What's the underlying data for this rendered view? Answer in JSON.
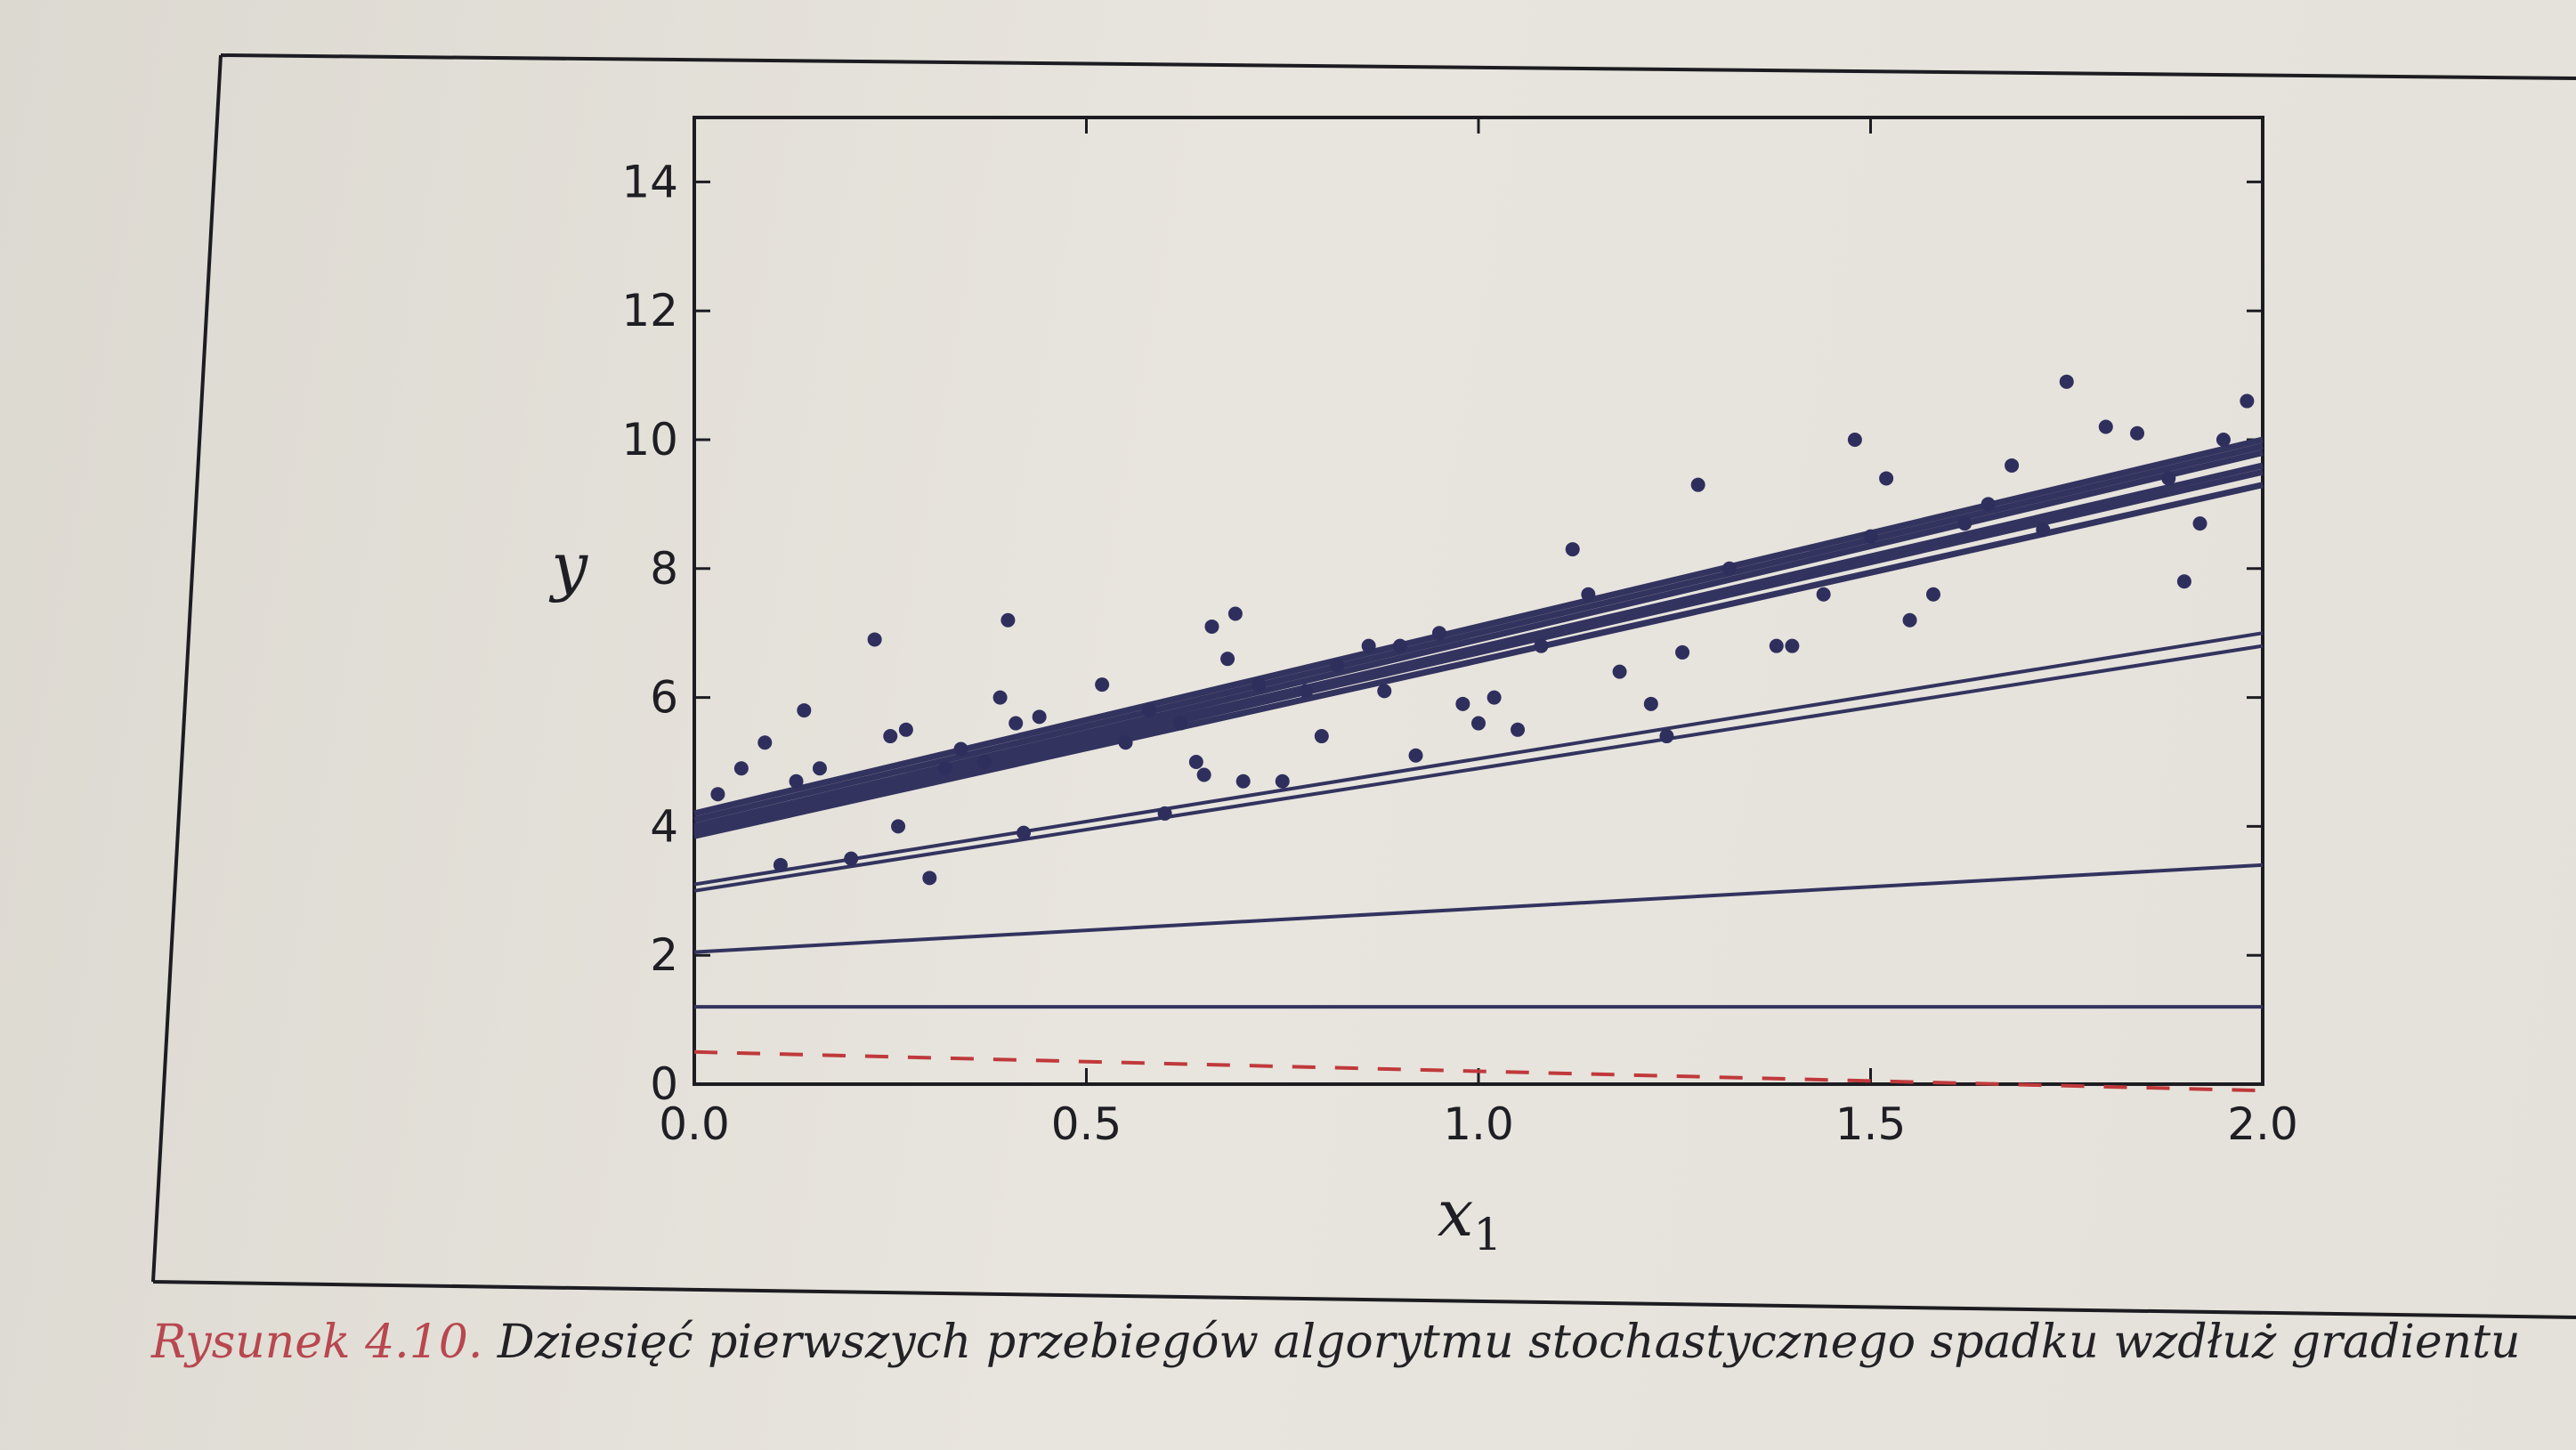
{
  "chart_data": {
    "type": "line",
    "title": "",
    "xlabel": "x",
    "xlabel_subscript": "1",
    "ylabel": "y",
    "xlim": [
      0.0,
      2.0
    ],
    "ylim": [
      0,
      15
    ],
    "xticks": [
      "0.0",
      "0.5",
      "1.0",
      "1.5",
      "2.0"
    ],
    "xtick_values": [
      0.0,
      0.5,
      1.0,
      1.5,
      2.0
    ],
    "yticks": [
      "0",
      "2",
      "4",
      "6",
      "8",
      "10",
      "12",
      "14"
    ],
    "ytick_values": [
      0,
      2,
      4,
      6,
      8,
      10,
      12,
      14
    ],
    "grid": false,
    "colors": {
      "points": "#2f2f5e",
      "lines": "#33335f",
      "initial_line": "#c0393b"
    },
    "initial_line": {
      "style": "dashed",
      "x": [
        0.0,
        2.0
      ],
      "y": [
        0.5,
        -0.1
      ]
    },
    "lines": [
      {
        "x": [
          0.0,
          2.0
        ],
        "y": [
          1.2,
          1.2
        ]
      },
      {
        "x": [
          0.0,
          2.0
        ],
        "y": [
          2.05,
          3.4
        ]
      },
      {
        "x": [
          0.0,
          2.0
        ],
        "y": [
          3.1,
          7.0
        ]
      },
      {
        "x": [
          0.0,
          2.0
        ],
        "y": [
          3.0,
          6.8
        ]
      },
      {
        "x": [
          0.0,
          2.0
        ],
        "y": [
          3.85,
          9.3
        ]
      },
      {
        "x": [
          0.0,
          2.0
        ],
        "y": [
          3.9,
          9.5
        ]
      },
      {
        "x": [
          0.0,
          2.0
        ],
        "y": [
          3.95,
          9.6
        ]
      },
      {
        "x": [
          0.0,
          2.0
        ],
        "y": [
          4.0,
          9.8
        ]
      },
      {
        "x": [
          0.0,
          2.0
        ],
        "y": [
          4.1,
          9.9
        ]
      },
      {
        "x": [
          0.0,
          2.0
        ],
        "y": [
          4.2,
          10.0
        ]
      }
    ],
    "points": {
      "x": [
        0.03,
        0.06,
        0.09,
        0.11,
        0.13,
        0.14,
        0.16,
        0.2,
        0.23,
        0.25,
        0.26,
        0.27,
        0.3,
        0.32,
        0.34,
        0.37,
        0.39,
        0.4,
        0.41,
        0.42,
        0.44,
        0.52,
        0.55,
        0.58,
        0.6,
        0.62,
        0.64,
        0.65,
        0.66,
        0.68,
        0.69,
        0.7,
        0.72,
        0.75,
        0.78,
        0.8,
        0.82,
        0.86,
        0.88,
        0.9,
        0.92,
        0.95,
        0.98,
        1.0,
        1.02,
        1.05,
        1.08,
        1.12,
        1.14,
        1.18,
        1.22,
        1.24,
        1.26,
        1.28,
        1.32,
        1.38,
        1.4,
        1.44,
        1.48,
        1.5,
        1.52,
        1.55,
        1.58,
        1.62,
        1.65,
        1.68,
        1.72,
        1.75,
        1.8,
        1.84,
        1.88,
        1.9,
        1.92,
        1.95,
        1.98
      ],
      "y": [
        4.5,
        4.9,
        5.3,
        3.4,
        4.7,
        5.8,
        4.9,
        3.5,
        6.9,
        5.4,
        4.0,
        5.5,
        3.2,
        4.9,
        5.2,
        5.0,
        6.0,
        7.2,
        5.6,
        3.9,
        5.7,
        6.2,
        5.3,
        5.8,
        4.2,
        5.6,
        5.0,
        4.8,
        7.1,
        6.6,
        7.3,
        4.7,
        6.2,
        4.7,
        6.1,
        5.4,
        6.5,
        6.8,
        6.1,
        6.8,
        5.1,
        7.0,
        5.9,
        5.6,
        6.0,
        5.5,
        6.8,
        8.3,
        7.6,
        6.4,
        5.9,
        5.4,
        6.7,
        9.3,
        8.0,
        6.8,
        6.8,
        7.6,
        10.0,
        8.5,
        9.4,
        7.2,
        7.6,
        8.7,
        9.0,
        9.6,
        8.6,
        10.9,
        10.2,
        10.1,
        9.4,
        7.8,
        8.7,
        10.0,
        10.6
      ]
    }
  },
  "caption": {
    "label": "Rysunek 4.10.",
    "text": " Dziesięć pierwszych przebiegów algorytmu stochastycznego spadku wzdłuż gradientu"
  }
}
